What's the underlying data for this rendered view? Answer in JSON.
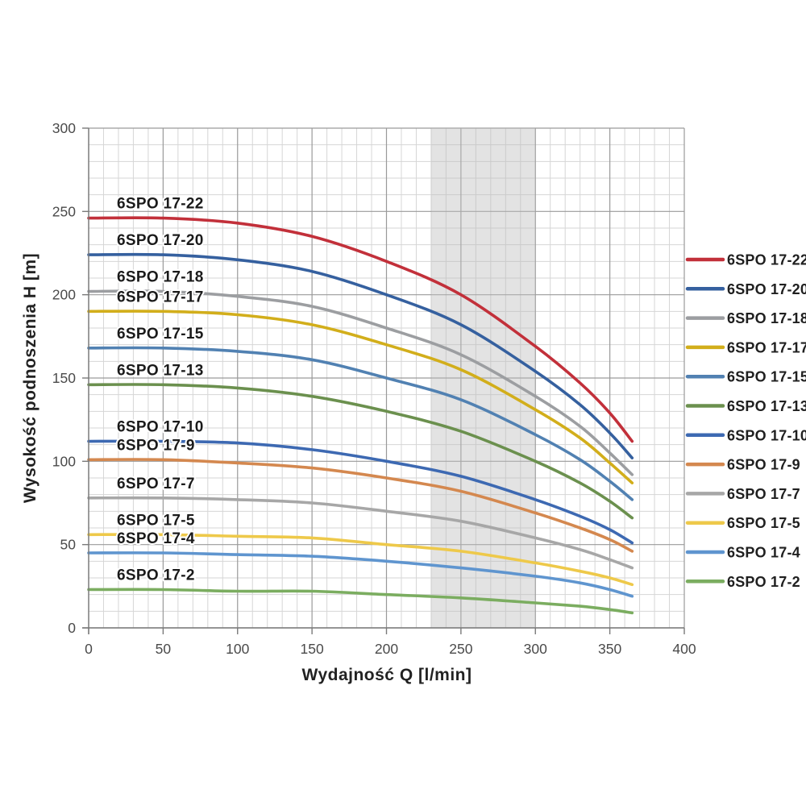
{
  "chart_data": {
    "type": "line",
    "title": "",
    "xlabel": "Wydajność Q [l/min]",
    "ylabel": "Wysokość podnoszenia H [m]",
    "xlim": [
      0,
      400
    ],
    "ylim": [
      0,
      300
    ],
    "x_ticks": [
      0,
      50,
      100,
      150,
      200,
      250,
      300,
      350,
      400
    ],
    "y_ticks": [
      0,
      50,
      100,
      150,
      200,
      250,
      300
    ],
    "minor_step_x": 10,
    "minor_step_y": 10,
    "grid": "on",
    "legend_position": "right",
    "band": {
      "x0": 230,
      "x1": 300,
      "color": "#bcbcbc",
      "opacity": 0.42
    },
    "x": [
      0,
      50,
      100,
      150,
      200,
      250,
      300,
      330,
      350,
      365
    ],
    "series": [
      {
        "name": "6SPO 17-22",
        "color": "#c2303a",
        "values": [
          246,
          246,
          243,
          235,
          220,
          200,
          169,
          147,
          129,
          112
        ]
      },
      {
        "name": "6SPO 17-20",
        "color": "#35609f",
        "values": [
          224,
          224,
          221,
          214,
          200,
          182,
          154,
          134,
          117,
          102
        ]
      },
      {
        "name": "6SPO 17-18",
        "color": "#9c9ea1",
        "values": [
          202,
          202,
          199,
          193,
          180,
          164,
          139,
          121,
          105,
          92
        ]
      },
      {
        "name": "6SPO 17-17",
        "color": "#d2ae1b",
        "values": [
          190,
          190,
          188,
          182,
          170,
          155,
          131,
          114,
          99,
          87
        ]
      },
      {
        "name": "6SPO 17-15",
        "color": "#5181b2",
        "values": [
          168,
          168,
          166,
          161,
          150,
          137,
          116,
          101,
          88,
          77
        ]
      },
      {
        "name": "6SPO 17-13",
        "color": "#6b904e",
        "values": [
          146,
          146,
          144,
          139,
          130,
          118,
          100,
          87,
          76,
          66
        ]
      },
      {
        "name": "6SPO 17-10",
        "color": "#3d69b2",
        "values": [
          112,
          112,
          111,
          107,
          100,
          91,
          77,
          67,
          59,
          51
        ]
      },
      {
        "name": "6SPO 17-9",
        "color": "#d4884f",
        "values": [
          101,
          101,
          99,
          96,
          90,
          82,
          69,
          60,
          53,
          46
        ]
      },
      {
        "name": "6SPO 17-7",
        "color": "#a7a7a7",
        "values": [
          78,
          78,
          77,
          75,
          70,
          64,
          54,
          47,
          41,
          36
        ]
      },
      {
        "name": "6SPO 17-5",
        "color": "#eec94a",
        "values": [
          56,
          56,
          55,
          54,
          50,
          46,
          39,
          34,
          30,
          26
        ]
      },
      {
        "name": "6SPO 17-4",
        "color": "#5f95cf",
        "values": [
          45,
          45,
          44,
          43,
          40,
          36,
          31,
          27,
          23,
          19
        ]
      },
      {
        "name": "6SPO 17-2",
        "color": "#7bad60",
        "values": [
          23,
          23,
          22,
          22,
          20,
          18,
          15,
          13,
          11,
          9
        ]
      }
    ],
    "inline_labels": [
      "6SPO 17-22",
      "6SPO 17-20",
      "6SPO 17-18",
      "6SPO 17-17",
      "6SPO 17-15",
      "6SPO 17-13",
      "6SPO 17-10",
      "6SPO 17-9",
      "6SPO 17-7",
      "6SPO 17-5",
      "6SPO 17-4",
      "6SPO 17-2"
    ]
  },
  "colors": {
    "grid_minor": "#d6d6d6",
    "grid_major": "#9a9a9a",
    "axis": "#7a7a7a"
  }
}
